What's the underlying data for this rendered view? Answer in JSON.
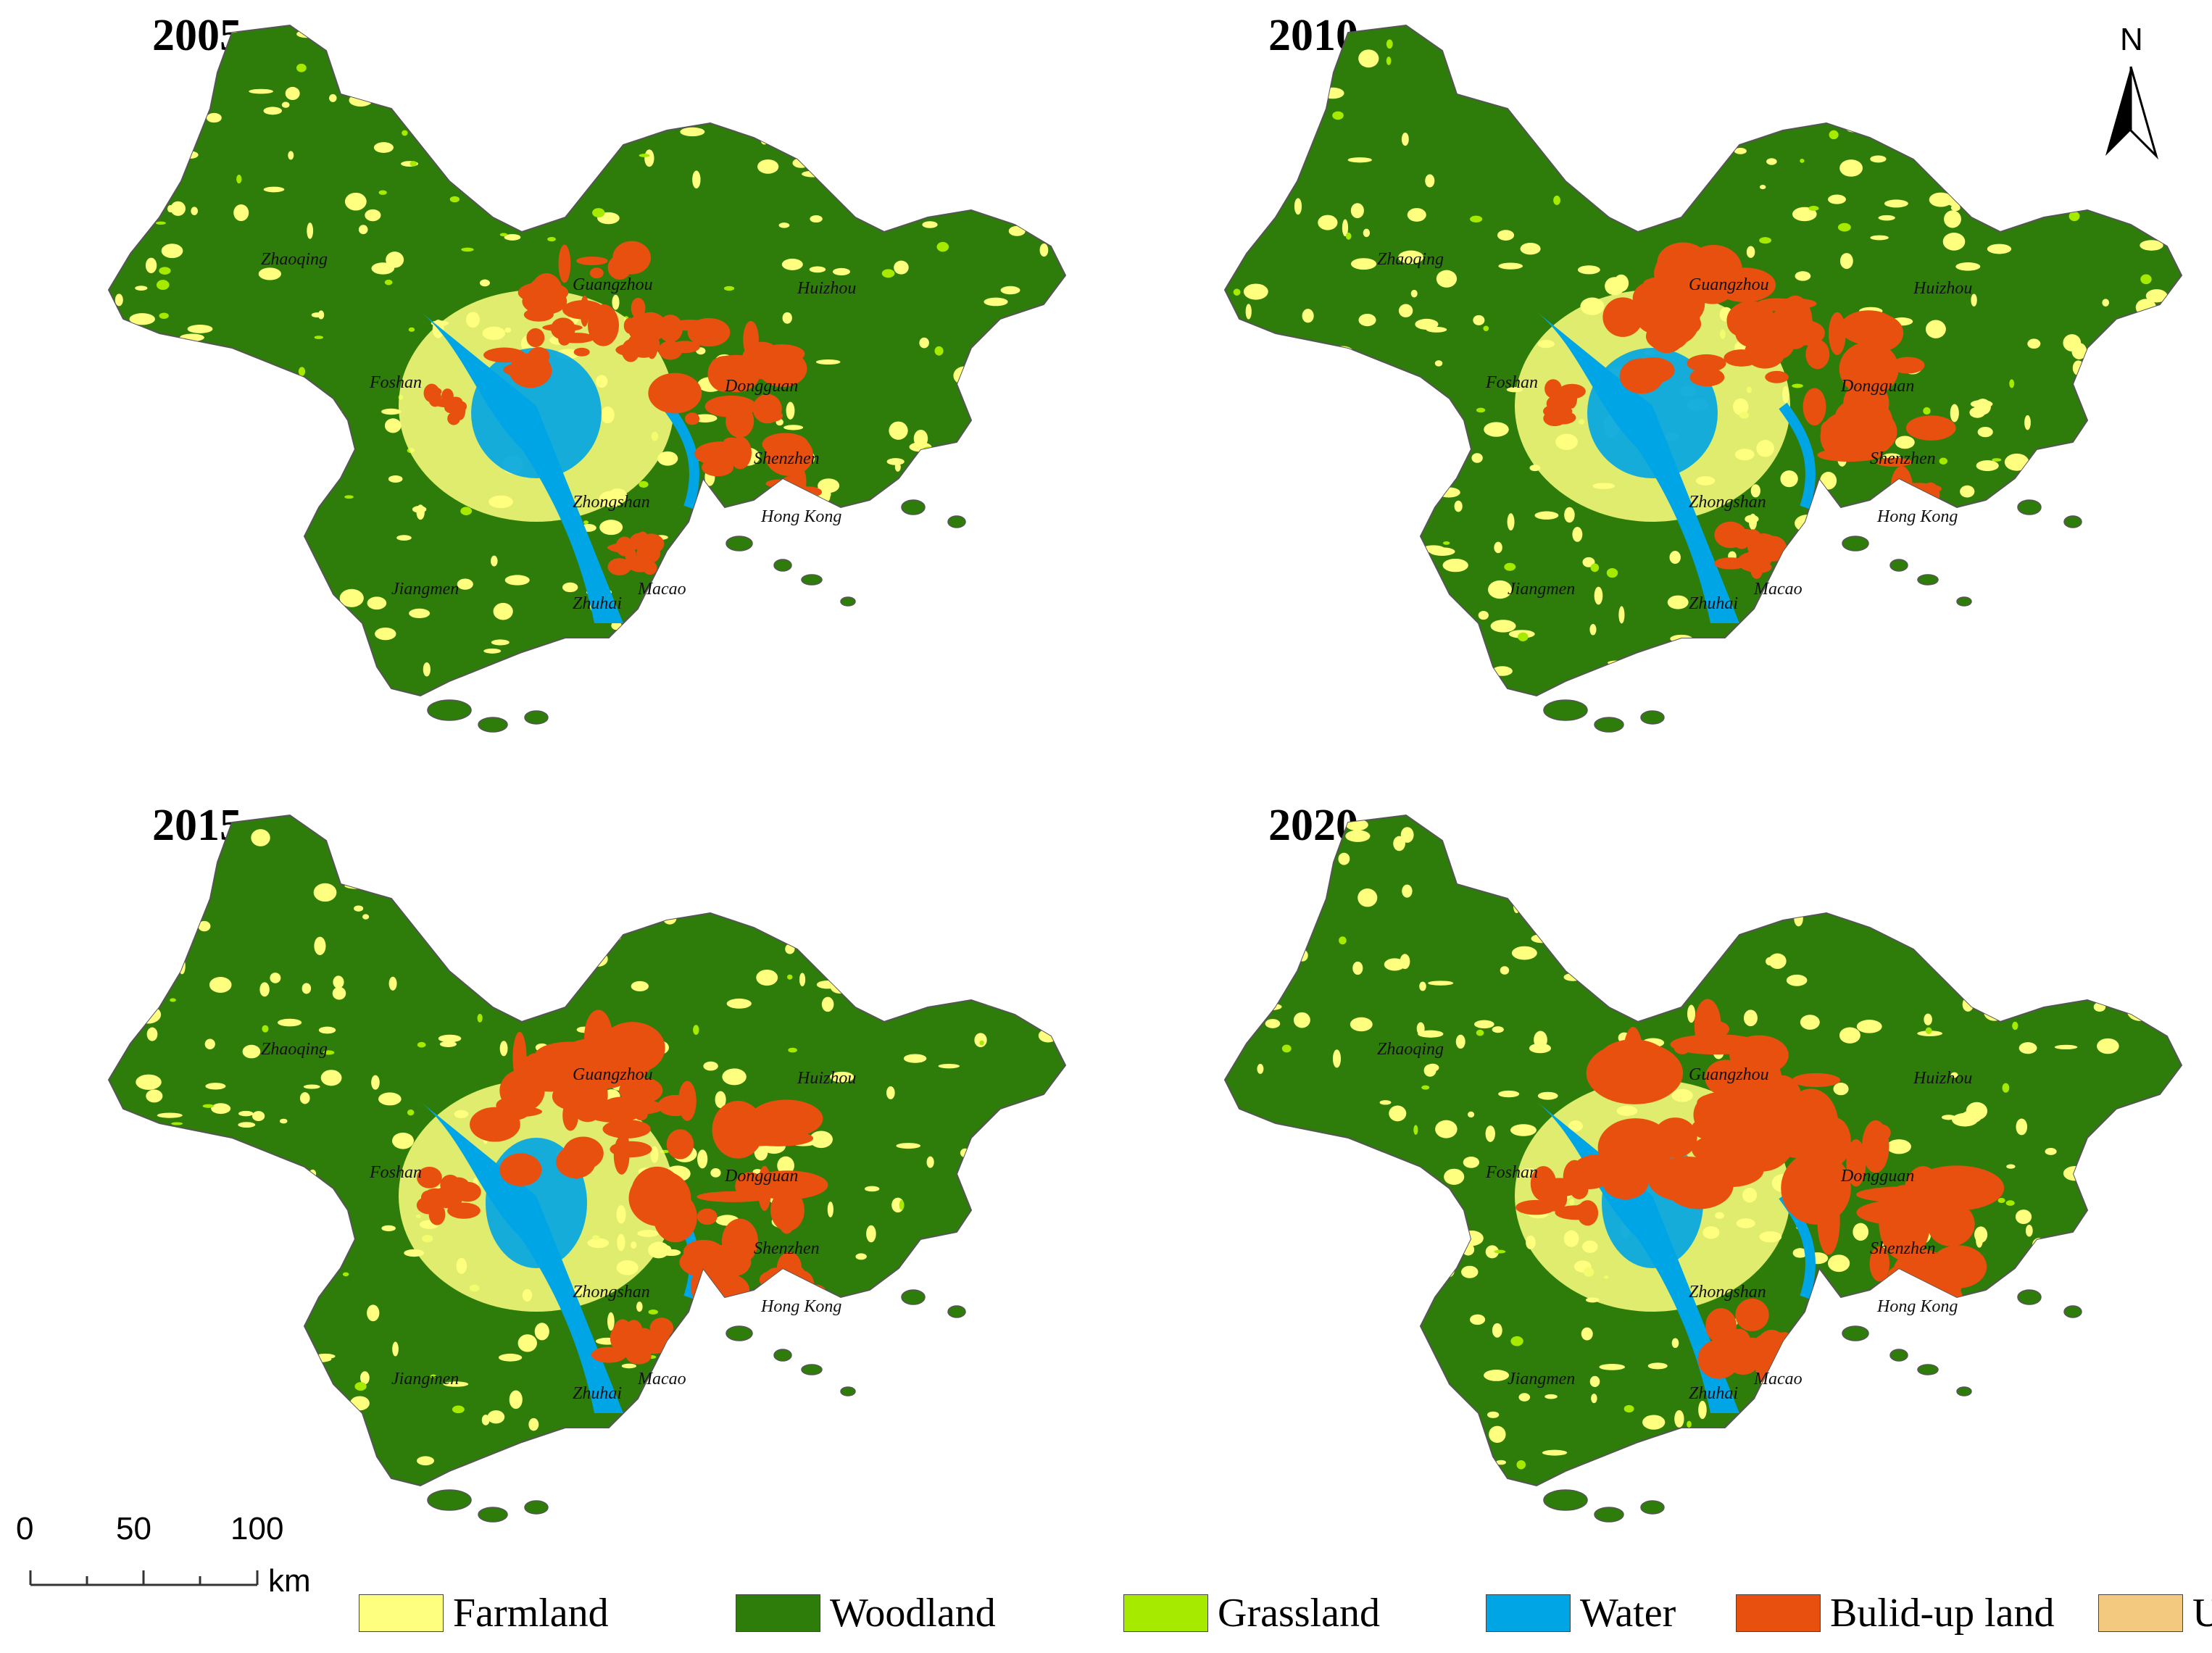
{
  "panels": [
    {
      "year": "2005"
    },
    {
      "year": "2010"
    },
    {
      "year": "2015"
    },
    {
      "year": "2020"
    }
  ],
  "cities": [
    "Zhaoqing",
    "Guangzhou",
    "Huizhou",
    "Foshan",
    "Dongguan",
    "Shenzhen",
    "Zhongshan",
    "Hong Kong",
    "Jiangmen",
    "Zhuhai",
    "Macao"
  ],
  "north_arrow": {
    "label": "N"
  },
  "scale_bar": {
    "ticks": [
      "0",
      "50",
      "100"
    ],
    "unit": "km"
  },
  "legend": [
    {
      "label": "Farmland",
      "color": "#ffff7f"
    },
    {
      "label": "Woodland",
      "color": "#2e7d0a"
    },
    {
      "label": "Grassland",
      "color": "#a6ea00"
    },
    {
      "label": "Water",
      "color": "#00a5e6"
    },
    {
      "label": "Bulid-up land",
      "color": "#e8500f"
    },
    {
      "label": "Unused",
      "color": "#f3c97f"
    }
  ]
}
